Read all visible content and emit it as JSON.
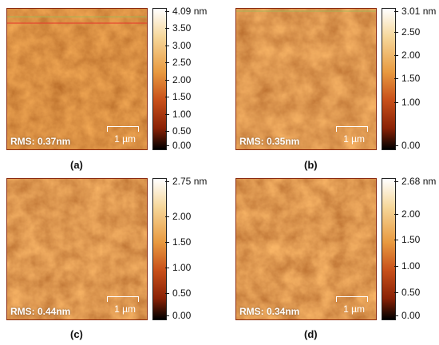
{
  "panels": [
    {
      "label": "(a)",
      "rms": "RMS: 0.37nm",
      "scale": "1 µm",
      "ticks": [
        "4.09 nm",
        "3.50",
        "3.00",
        "2.50",
        "2.00",
        "1.50",
        "1.00",
        "0.50",
        "0.00"
      ],
      "tickValues": [
        4.09,
        3.5,
        3.0,
        2.5,
        2.0,
        1.5,
        1.0,
        0.5,
        0.0
      ],
      "max": 4.09
    },
    {
      "label": "(b)",
      "rms": "RMS: 0.35nm",
      "scale": "1 µm",
      "ticks": [
        "3.01 nm",
        "2.50",
        "2.00",
        "1.50",
        "1.00",
        "0.00"
      ],
      "tickValues": [
        3.01,
        2.5,
        2.0,
        1.5,
        1.0,
        0.0
      ],
      "max": 3.01
    },
    {
      "label": "(c)",
      "rms": "RMS: 0.44nm",
      "scale": "1 µm",
      "ticks": [
        "2.75 nm",
        "2.00",
        "1.50",
        "1.00",
        "0.50",
        "0.00"
      ],
      "tickValues": [
        2.75,
        2.0,
        1.5,
        1.0,
        0.5,
        0.0
      ],
      "max": 2.75
    },
    {
      "label": "(d)",
      "rms": "RMS: 0.34nm",
      "scale": "1 µm",
      "ticks": [
        "2.68 nm",
        "2.00",
        "1.50",
        "1.00",
        "0.50",
        "0.00"
      ],
      "tickValues": [
        2.68,
        2.0,
        1.5,
        1.0,
        0.5,
        0.0
      ],
      "max": 2.68
    }
  ],
  "colors": {
    "dark": "#000000",
    "mid": "#c8501a",
    "light": "#ffffff"
  }
}
